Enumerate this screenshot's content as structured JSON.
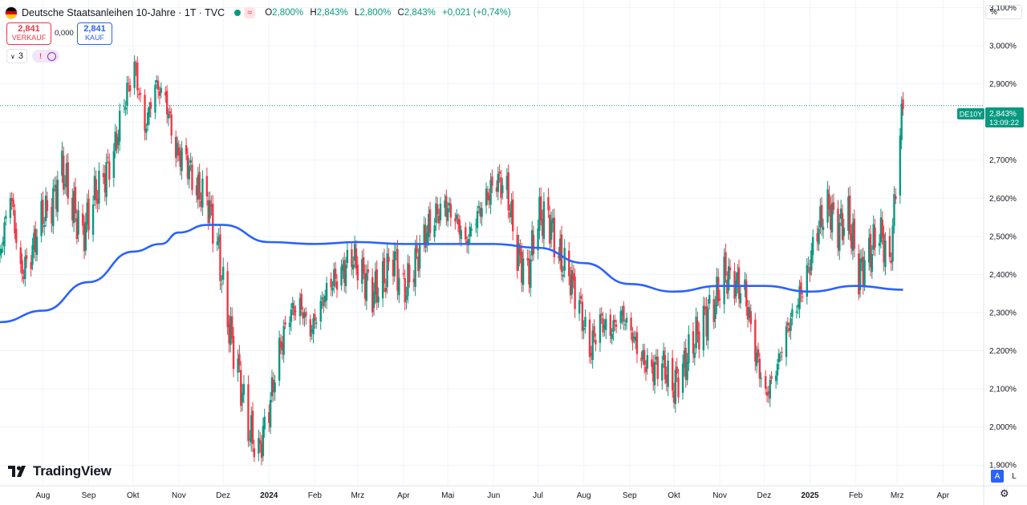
{
  "header": {
    "title": "Deutsche Staatsanleihen 10-Jahre · 1T · TVC",
    "approx_icon": "≈",
    "o_label": "O",
    "o_value": "2,800%",
    "h_label": "H",
    "h_value": "2,843%",
    "l_label": "L",
    "l_value": "2,800%",
    "c_label": "C",
    "c_value": "2,843%",
    "change": "+0,021 (+0,74%)"
  },
  "trade": {
    "sell_price": "2,841",
    "sell_label": "VERKAUF",
    "spread": "0,000",
    "buy_price": "2,841",
    "buy_label": "KAUF"
  },
  "indicators": {
    "count_label": "3",
    "alert_icon": "!",
    "refresh_icon": "refresh-icon"
  },
  "axis_unit": "%",
  "price_tag": {
    "symbol": "DE10Y",
    "price": "2,843%",
    "countdown": "13:09:22"
  },
  "logo_text": "TradingView",
  "scale_buttons": {
    "auto": "A",
    "log": "L"
  },
  "colors": {
    "up": "#089981",
    "down": "#f23645",
    "ma": "#2962ff",
    "grid": "#f0f3fa"
  },
  "chart_data": {
    "type": "candlestick",
    "title": "Deutsche Staatsanleihen 10-Jahre",
    "ylim": [
      1.85,
      3.12
    ],
    "y_ticks": [
      "3,100%",
      "3,000%",
      "2,900%",
      "2,800%",
      "2,700%",
      "2,600%",
      "2,500%",
      "2,400%",
      "2,300%",
      "2,200%",
      "2,100%",
      "2,000%",
      "1,900%"
    ],
    "y_tick_values": [
      3.1,
      3.0,
      2.9,
      2.8,
      2.7,
      2.6,
      2.5,
      2.4,
      2.3,
      2.2,
      2.1,
      2.0,
      1.9
    ],
    "x_ticks": [
      "Aug",
      "Sep",
      "Okt",
      "Nov",
      "Dez",
      "2024",
      "Feb",
      "Mrz",
      "Apr",
      "Mai",
      "Jun",
      "Jul",
      "Aug",
      "Sep",
      "Okt",
      "Nov",
      "Dez",
      "2025",
      "Feb",
      "Mrz",
      "Apr"
    ],
    "x_tick_dates": [
      "2023-08-01",
      "2023-09-01",
      "2023-10-01",
      "2023-11-01",
      "2023-12-01",
      "2024-01-01",
      "2024-02-01",
      "2024-03-01",
      "2024-04-01",
      "2024-05-01",
      "2024-06-01",
      "2024-07-01",
      "2024-08-01",
      "2024-09-01",
      "2024-10-01",
      "2024-11-01",
      "2024-12-01",
      "2025-01-01",
      "2025-02-01",
      "2025-03-01",
      "2025-04-01"
    ],
    "x_range": [
      "2023-07-03",
      "2025-04-28"
    ],
    "last_price": 2.843,
    "price_series": [
      {
        "date": "2023-07-03",
        "value": 2.45
      },
      {
        "date": "2023-07-10",
        "value": 2.62
      },
      {
        "date": "2023-07-17",
        "value": 2.4
      },
      {
        "date": "2023-07-24",
        "value": 2.45
      },
      {
        "date": "2023-07-31",
        "value": 2.55
      },
      {
        "date": "2023-08-07",
        "value": 2.58
      },
      {
        "date": "2023-08-14",
        "value": 2.68
      },
      {
        "date": "2023-08-21",
        "value": 2.58
      },
      {
        "date": "2023-08-28",
        "value": 2.5
      },
      {
        "date": "2023-09-04",
        "value": 2.6
      },
      {
        "date": "2023-09-11",
        "value": 2.65
      },
      {
        "date": "2023-09-18",
        "value": 2.72
      },
      {
        "date": "2023-09-25",
        "value": 2.85
      },
      {
        "date": "2023-10-02",
        "value": 2.95
      },
      {
        "date": "2023-10-09",
        "value": 2.78
      },
      {
        "date": "2023-10-16",
        "value": 2.9
      },
      {
        "date": "2023-10-23",
        "value": 2.86
      },
      {
        "date": "2023-10-30",
        "value": 2.72
      },
      {
        "date": "2023-11-06",
        "value": 2.7
      },
      {
        "date": "2023-11-13",
        "value": 2.62
      },
      {
        "date": "2023-11-20",
        "value": 2.6
      },
      {
        "date": "2023-11-27",
        "value": 2.48
      },
      {
        "date": "2023-12-04",
        "value": 2.28
      },
      {
        "date": "2023-12-11",
        "value": 2.15
      },
      {
        "date": "2023-12-18",
        "value": 2.0
      },
      {
        "date": "2023-12-25",
        "value": 1.93
      },
      {
        "date": "2024-01-01",
        "value": 2.05
      },
      {
        "date": "2024-01-08",
        "value": 2.2
      },
      {
        "date": "2024-01-15",
        "value": 2.3
      },
      {
        "date": "2024-01-22",
        "value": 2.32
      },
      {
        "date": "2024-01-29",
        "value": 2.25
      },
      {
        "date": "2024-02-05",
        "value": 2.32
      },
      {
        "date": "2024-02-12",
        "value": 2.38
      },
      {
        "date": "2024-02-19",
        "value": 2.4
      },
      {
        "date": "2024-02-26",
        "value": 2.45
      },
      {
        "date": "2024-03-04",
        "value": 2.4
      },
      {
        "date": "2024-03-11",
        "value": 2.35
      },
      {
        "date": "2024-03-18",
        "value": 2.38
      },
      {
        "date": "2024-03-25",
        "value": 2.45
      },
      {
        "date": "2024-04-01",
        "value": 2.35
      },
      {
        "date": "2024-04-08",
        "value": 2.42
      },
      {
        "date": "2024-04-15",
        "value": 2.5
      },
      {
        "date": "2024-04-22",
        "value": 2.55
      },
      {
        "date": "2024-04-29",
        "value": 2.58
      },
      {
        "date": "2024-05-06",
        "value": 2.55
      },
      {
        "date": "2024-05-13",
        "value": 2.48
      },
      {
        "date": "2024-05-20",
        "value": 2.55
      },
      {
        "date": "2024-05-27",
        "value": 2.6
      },
      {
        "date": "2024-06-03",
        "value": 2.65
      },
      {
        "date": "2024-06-10",
        "value": 2.62
      },
      {
        "date": "2024-06-17",
        "value": 2.45
      },
      {
        "date": "2024-06-24",
        "value": 2.4
      },
      {
        "date": "2024-07-01",
        "value": 2.55
      },
      {
        "date": "2024-07-08",
        "value": 2.55
      },
      {
        "date": "2024-07-15",
        "value": 2.45
      },
      {
        "date": "2024-07-22",
        "value": 2.4
      },
      {
        "date": "2024-07-29",
        "value": 2.32
      },
      {
        "date": "2024-08-05",
        "value": 2.2
      },
      {
        "date": "2024-08-12",
        "value": 2.28
      },
      {
        "date": "2024-08-19",
        "value": 2.25
      },
      {
        "date": "2024-08-26",
        "value": 2.3
      },
      {
        "date": "2024-09-02",
        "value": 2.25
      },
      {
        "date": "2024-09-09",
        "value": 2.18
      },
      {
        "date": "2024-09-16",
        "value": 2.15
      },
      {
        "date": "2024-09-23",
        "value": 2.17
      },
      {
        "date": "2024-09-30",
        "value": 2.1
      },
      {
        "date": "2024-10-07",
        "value": 2.15
      },
      {
        "date": "2024-10-14",
        "value": 2.22
      },
      {
        "date": "2024-10-21",
        "value": 2.28
      },
      {
        "date": "2024-10-28",
        "value": 2.32
      },
      {
        "date": "2024-11-04",
        "value": 2.4
      },
      {
        "date": "2024-11-11",
        "value": 2.38
      },
      {
        "date": "2024-11-18",
        "value": 2.35
      },
      {
        "date": "2024-11-25",
        "value": 2.2
      },
      {
        "date": "2024-12-02",
        "value": 2.08
      },
      {
        "date": "2024-12-09",
        "value": 2.15
      },
      {
        "date": "2024-12-16",
        "value": 2.25
      },
      {
        "date": "2024-12-23",
        "value": 2.32
      },
      {
        "date": "2024-12-30",
        "value": 2.4
      },
      {
        "date": "2025-01-06",
        "value": 2.52
      },
      {
        "date": "2025-01-13",
        "value": 2.58
      },
      {
        "date": "2025-01-20",
        "value": 2.52
      },
      {
        "date": "2025-01-27",
        "value": 2.55
      },
      {
        "date": "2025-02-03",
        "value": 2.4
      },
      {
        "date": "2025-02-10",
        "value": 2.45
      },
      {
        "date": "2025-02-17",
        "value": 2.52
      },
      {
        "date": "2025-02-24",
        "value": 2.42
      },
      {
        "date": "2025-03-03",
        "value": 2.78
      },
      {
        "date": "2025-03-05",
        "value": 2.843
      }
    ],
    "moving_average": [
      {
        "date": "2023-07-03",
        "value": 2.275
      },
      {
        "date": "2023-08-01",
        "value": 2.305
      },
      {
        "date": "2023-09-01",
        "value": 2.38
      },
      {
        "date": "2023-10-01",
        "value": 2.46
      },
      {
        "date": "2023-10-20",
        "value": 2.48
      },
      {
        "date": "2023-11-01",
        "value": 2.51
      },
      {
        "date": "2023-11-20",
        "value": 2.53
      },
      {
        "date": "2023-12-01",
        "value": 2.53
      },
      {
        "date": "2024-01-01",
        "value": 2.485
      },
      {
        "date": "2024-02-01",
        "value": 2.48
      },
      {
        "date": "2024-03-01",
        "value": 2.485
      },
      {
        "date": "2024-04-01",
        "value": 2.48
      },
      {
        "date": "2024-05-01",
        "value": 2.48
      },
      {
        "date": "2024-06-01",
        "value": 2.48
      },
      {
        "date": "2024-07-01",
        "value": 2.47
      },
      {
        "date": "2024-08-01",
        "value": 2.43
      },
      {
        "date": "2024-09-01",
        "value": 2.375
      },
      {
        "date": "2024-10-01",
        "value": 2.355
      },
      {
        "date": "2024-11-01",
        "value": 2.37
      },
      {
        "date": "2024-12-01",
        "value": 2.37
      },
      {
        "date": "2025-01-01",
        "value": 2.355
      },
      {
        "date": "2025-02-01",
        "value": 2.37
      },
      {
        "date": "2025-03-05",
        "value": 2.36
      }
    ]
  }
}
